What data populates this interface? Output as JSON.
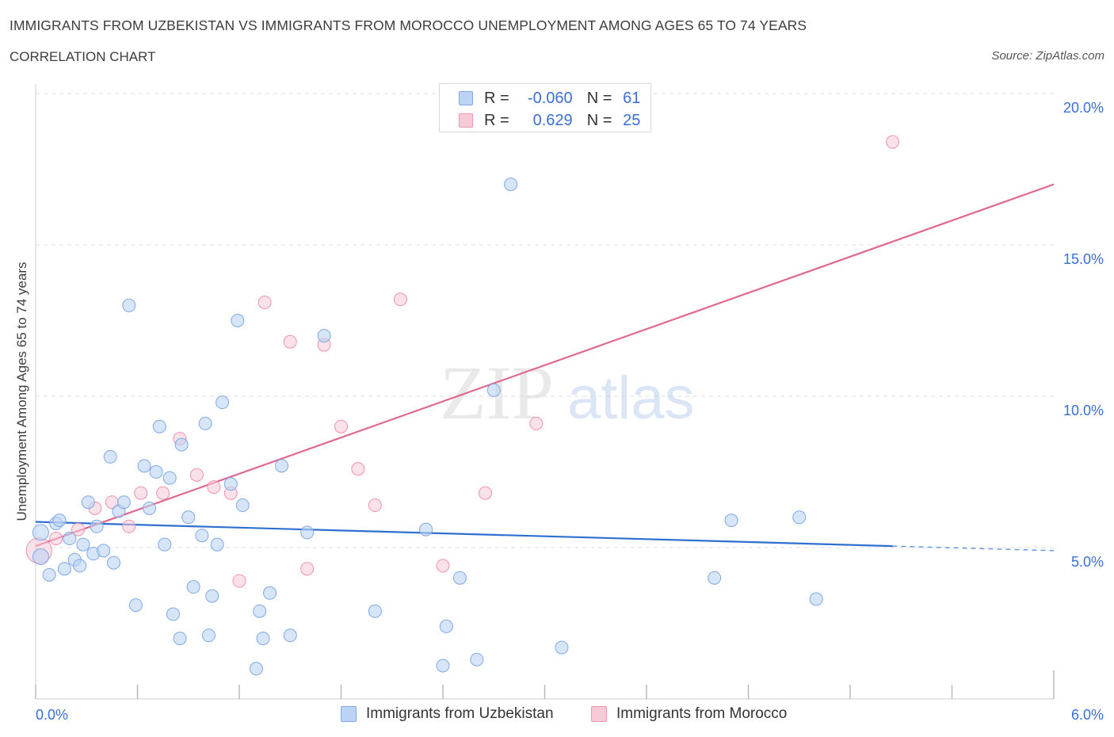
{
  "title": "IMMIGRANTS FROM UZBEKISTAN VS IMMIGRANTS FROM MOROCCO UNEMPLOYMENT AMONG AGES 65 TO 74 YEARS",
  "subtitle": "CORRELATION CHART",
  "source": "Source: ZipAtlas.com",
  "watermark": {
    "zip": "ZIP",
    "atlas": "atlas"
  },
  "legend": {
    "rows": [
      {
        "name": "uzbekistan",
        "r_label": "R =",
        "r_value": "-0.060",
        "n_label": "N =",
        "n_value": "61"
      },
      {
        "name": "morocco",
        "r_label": "R =",
        "r_value": "0.629",
        "n_label": "N =",
        "n_value": "25"
      }
    ]
  },
  "bottom_legend": [
    "Immigrants from Uzbekistan",
    "Immigrants from Morocco"
  ],
  "colors": {
    "uzbekistan_fill": "#bcd3f5",
    "uzbekistan_stroke": "#7fa9e6",
    "uzbekistan_line": "#2f6fd0",
    "morocco_fill": "#f8c9d7",
    "morocco_stroke": "#ef93ae",
    "morocco_line": "#e06890",
    "tick_label": "#3b6fd4",
    "grid": "#dddddd"
  },
  "chart_data": {
    "type": "scatter",
    "title": "IMMIGRANTS FROM UZBEKISTAN VS IMMIGRANTS FROM MOROCCO UNEMPLOYMENT AMONG AGES 65 TO 74 YEARS",
    "xlabel": "",
    "ylabel": "Unemployment Among Ages 65 to 74 years",
    "xlim": [
      0,
      6
    ],
    "ylim": [
      0,
      20
    ],
    "x_tick_labels": [
      {
        "value": 0,
        "label": "0.0%"
      },
      {
        "value": 6,
        "label": "6.0%"
      }
    ],
    "y_ticks": [
      {
        "value": 5,
        "label": "5.0%"
      },
      {
        "value": 10,
        "label": "10.0%"
      },
      {
        "value": 15,
        "label": "15.0%"
      },
      {
        "value": 20,
        "label": "20.0%"
      }
    ],
    "series": [
      {
        "name": "Immigrants from Uzbekistan",
        "color": "#bcd3f5",
        "points": [
          [
            0.03,
            5.5
          ],
          [
            0.03,
            4.7
          ],
          [
            0.08,
            4.1
          ],
          [
            0.12,
            5.8
          ],
          [
            0.14,
            5.9
          ],
          [
            0.17,
            4.3
          ],
          [
            0.2,
            5.3
          ],
          [
            0.23,
            4.6
          ],
          [
            0.26,
            4.4
          ],
          [
            0.28,
            5.1
          ],
          [
            0.31,
            6.5
          ],
          [
            0.34,
            4.8
          ],
          [
            0.36,
            5.7
          ],
          [
            0.4,
            4.9
          ],
          [
            0.44,
            8.0
          ],
          [
            0.46,
            4.5
          ],
          [
            0.49,
            6.2
          ],
          [
            0.52,
            6.5
          ],
          [
            0.55,
            13.0
          ],
          [
            0.59,
            3.1
          ],
          [
            0.64,
            7.7
          ],
          [
            0.67,
            6.3
          ],
          [
            0.71,
            7.5
          ],
          [
            0.73,
            9.0
          ],
          [
            0.76,
            5.1
          ],
          [
            0.79,
            7.3
          ],
          [
            0.81,
            2.8
          ],
          [
            0.85,
            2.0
          ],
          [
            0.86,
            8.4
          ],
          [
            0.9,
            6.0
          ],
          [
            0.93,
            3.7
          ],
          [
            0.98,
            5.4
          ],
          [
            1.0,
            9.1
          ],
          [
            1.02,
            2.1
          ],
          [
            1.04,
            3.4
          ],
          [
            1.07,
            5.1
          ],
          [
            1.1,
            9.8
          ],
          [
            1.15,
            7.1
          ],
          [
            1.19,
            12.5
          ],
          [
            1.22,
            6.4
          ],
          [
            1.3,
            1.0
          ],
          [
            1.32,
            2.9
          ],
          [
            1.34,
            2.0
          ],
          [
            1.38,
            3.5
          ],
          [
            1.45,
            7.7
          ],
          [
            1.5,
            2.1
          ],
          [
            1.6,
            5.5
          ],
          [
            1.7,
            12.0
          ],
          [
            2.0,
            2.9
          ],
          [
            2.3,
            5.6
          ],
          [
            2.4,
            1.1
          ],
          [
            2.42,
            2.4
          ],
          [
            2.5,
            4.0
          ],
          [
            2.6,
            1.3
          ],
          [
            2.7,
            10.2
          ],
          [
            2.8,
            17.0
          ],
          [
            3.1,
            1.7
          ],
          [
            4.0,
            4.0
          ],
          [
            4.1,
            5.9
          ],
          [
            4.5,
            6.0
          ],
          [
            4.6,
            3.3
          ]
        ]
      },
      {
        "name": "Immigrants from Morocco",
        "color": "#f8c9d7",
        "points": [
          [
            0.02,
            4.9
          ],
          [
            0.12,
            5.3
          ],
          [
            0.25,
            5.6
          ],
          [
            0.35,
            6.3
          ],
          [
            0.45,
            6.5
          ],
          [
            0.55,
            5.7
          ],
          [
            0.62,
            6.8
          ],
          [
            0.75,
            6.8
          ],
          [
            0.85,
            8.6
          ],
          [
            0.95,
            7.4
          ],
          [
            1.05,
            7.0
          ],
          [
            1.15,
            6.8
          ],
          [
            1.2,
            3.9
          ],
          [
            1.35,
            13.1
          ],
          [
            1.5,
            11.8
          ],
          [
            1.6,
            4.3
          ],
          [
            1.7,
            11.7
          ],
          [
            1.8,
            9.0
          ],
          [
            1.9,
            7.6
          ],
          [
            2.0,
            6.4
          ],
          [
            2.15,
            13.2
          ],
          [
            2.4,
            4.4
          ],
          [
            2.65,
            6.8
          ],
          [
            2.95,
            9.1
          ],
          [
            5.05,
            18.4
          ]
        ]
      }
    ],
    "trend_lines": [
      {
        "series": "Immigrants from Uzbekistan",
        "x": [
          0.0,
          5.05
        ],
        "y": [
          5.85,
          5.05
        ],
        "dashed_extension_to": 6.0
      },
      {
        "series": "Immigrants from Morocco",
        "x": [
          0.0,
          6.0
        ],
        "y": [
          5.05,
          17.0
        ]
      }
    ]
  }
}
